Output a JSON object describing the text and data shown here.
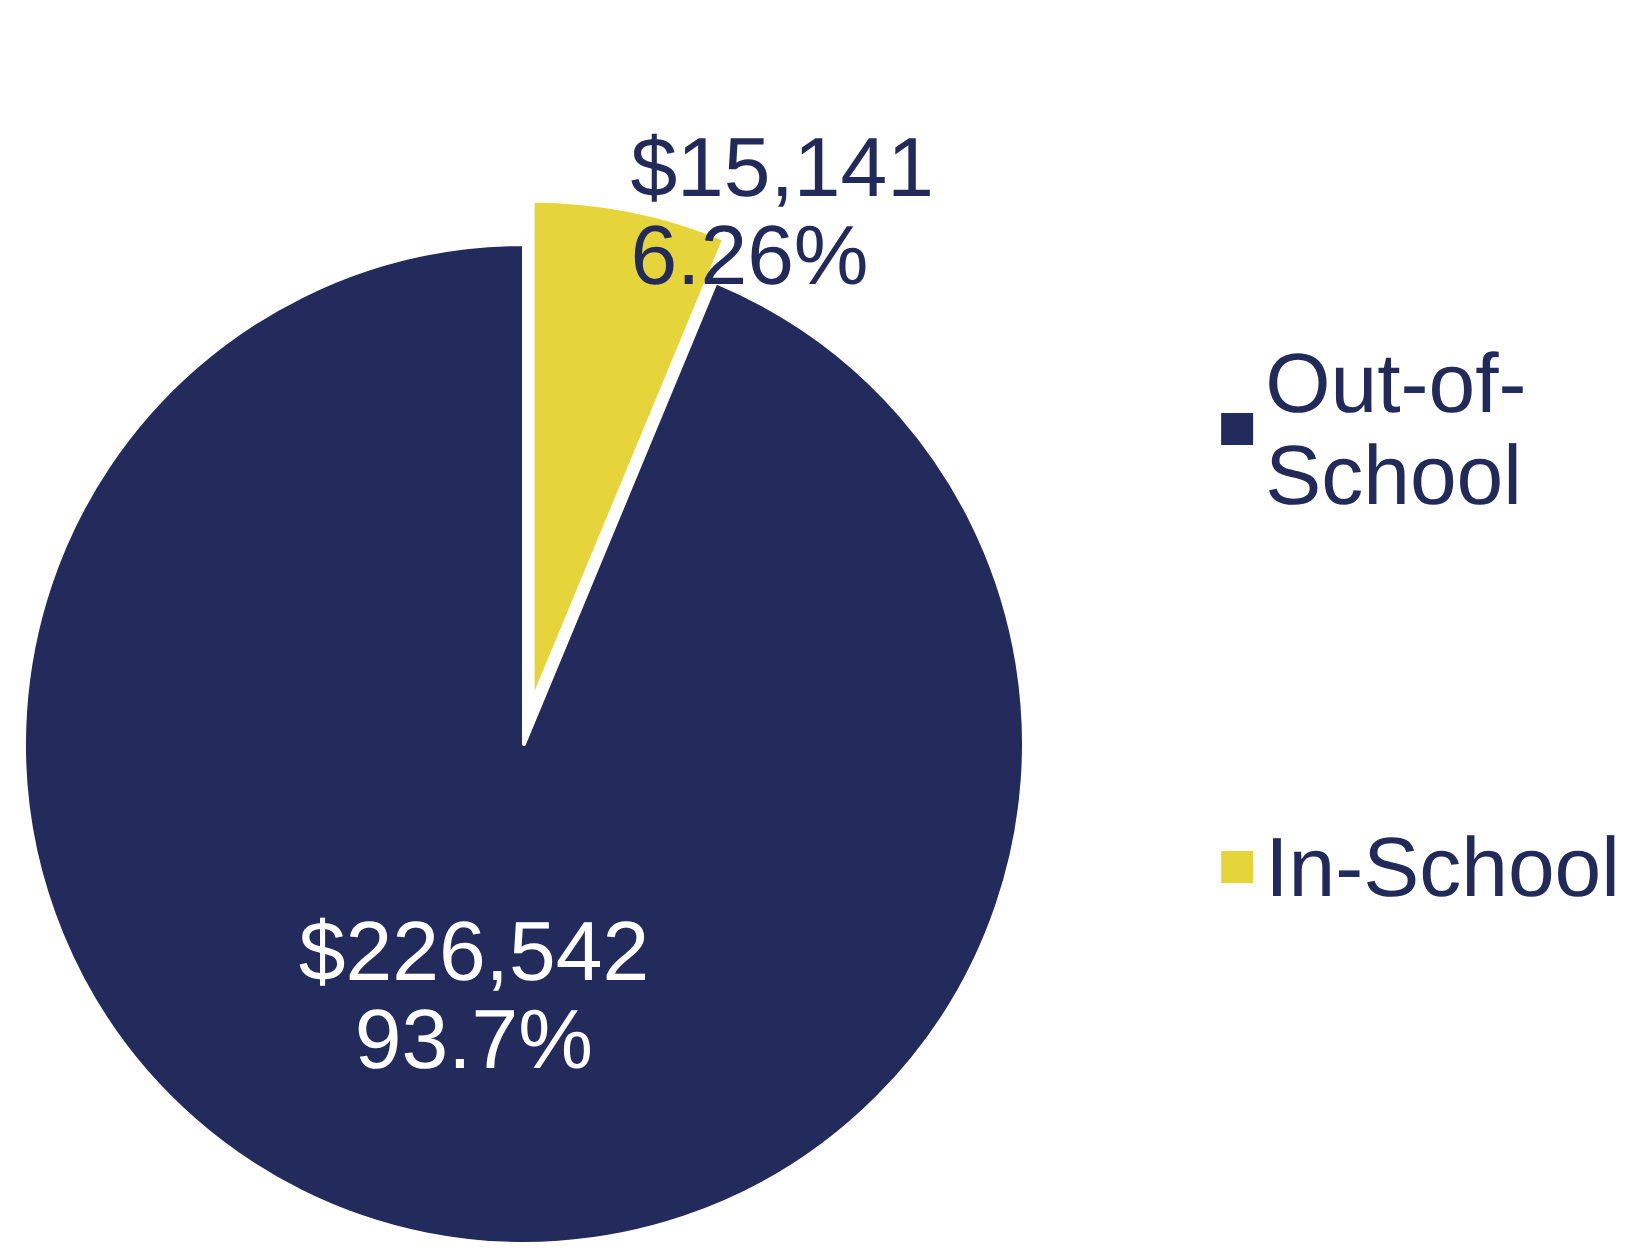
{
  "chart_data": {
    "type": "pie",
    "categories": [
      "Out-of-School",
      "In-School"
    ],
    "values": [
      226542,
      15141
    ],
    "colors": [
      "#232a5c",
      "#e6d53a"
    ],
    "value_labels": [
      "$226,542\n93.7%",
      "$15,141\n6.26%"
    ],
    "legend": "right"
  }
}
